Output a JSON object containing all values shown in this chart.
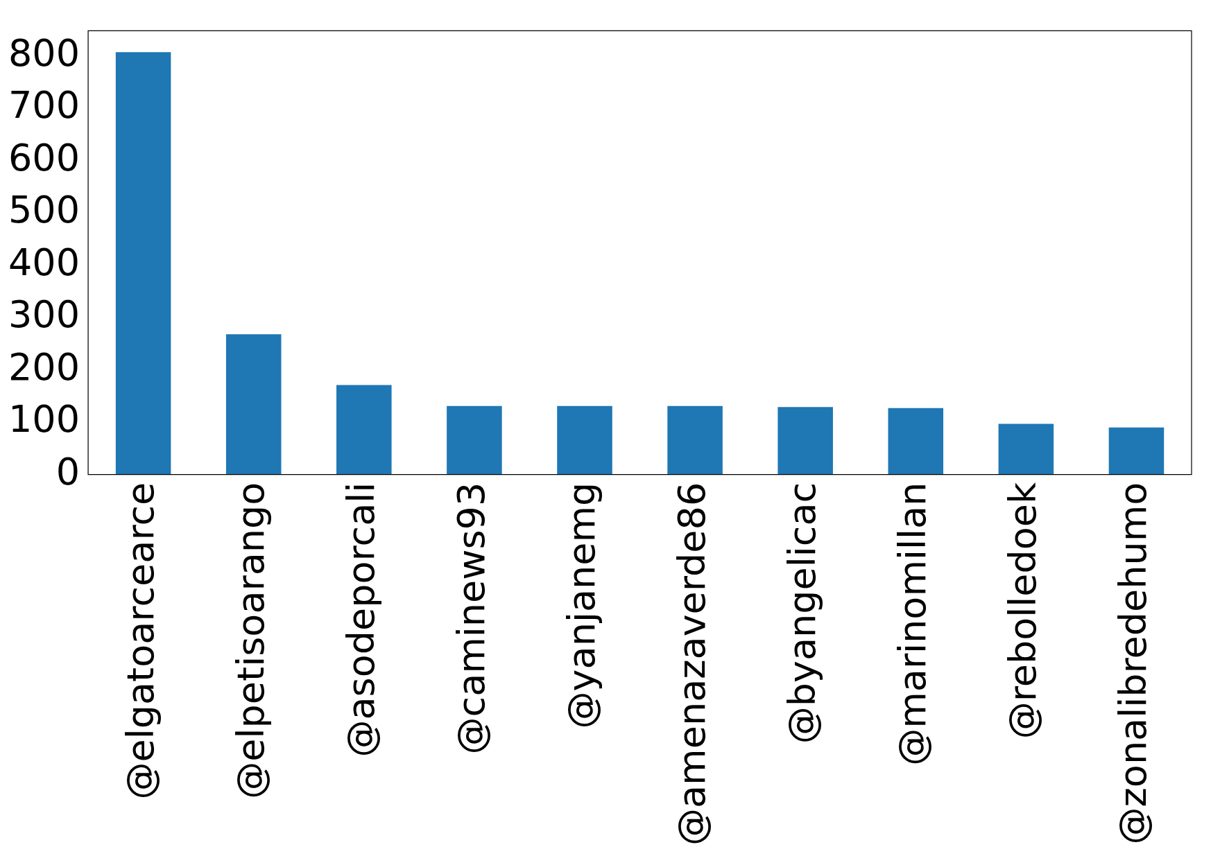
{
  "chart_data": {
    "type": "bar",
    "categories": [
      "@elgatoarcearce",
      "@elpetisoarango",
      "@asodeporcali",
      "@caminews93",
      "@yanjanemg",
      "@amenazaverde86",
      "@byangelicac",
      "@marinomillan",
      "@rebolledoek",
      "@zonalibredehumo"
    ],
    "values": [
      807,
      268,
      171,
      131,
      131,
      131,
      129,
      127,
      97,
      90
    ],
    "color": "#1f77b4",
    "ylim": [
      0,
      848
    ],
    "yticks": [
      0,
      100,
      200,
      300,
      400,
      500,
      600,
      700,
      800
    ],
    "grid": false,
    "legend": false
  }
}
